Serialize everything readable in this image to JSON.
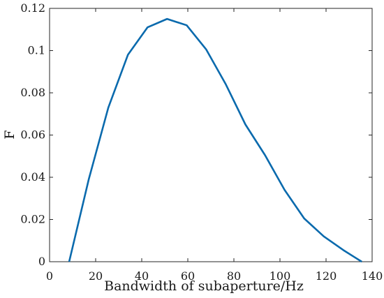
{
  "chart_data": {
    "type": "line",
    "title": "",
    "xlabel": "Bandwidth of subaperture/Hz",
    "ylabel": "F",
    "xlim": [
      0,
      140
    ],
    "ylim": [
      0,
      0.12
    ],
    "xticks": [
      0,
      20,
      40,
      60,
      80,
      100,
      120,
      140
    ],
    "yticks": [
      0,
      0.02,
      0.04,
      0.06,
      0.08,
      0.1,
      0.12
    ],
    "xtick_labels": [
      "0",
      "20",
      "40",
      "60",
      "80",
      "100",
      "120",
      "140"
    ],
    "ytick_labels": [
      "0",
      "0.02",
      "0.04",
      "0.06",
      "0.08",
      "0.1",
      "0.12"
    ],
    "grid": false,
    "series": [
      {
        "color": "#0a6aad",
        "x": [
          8.5,
          17,
          25.5,
          34,
          42.5,
          51,
          59.5,
          68,
          76.5,
          85,
          93.5,
          102,
          110.5,
          119,
          127.5,
          135.5
        ],
        "y": [
          0,
          0.039,
          0.073,
          0.098,
          0.111,
          0.115,
          0.112,
          0.1005,
          0.084,
          0.065,
          0.0505,
          0.034,
          0.0205,
          0.012,
          0.0055,
          0
        ]
      }
    ]
  }
}
